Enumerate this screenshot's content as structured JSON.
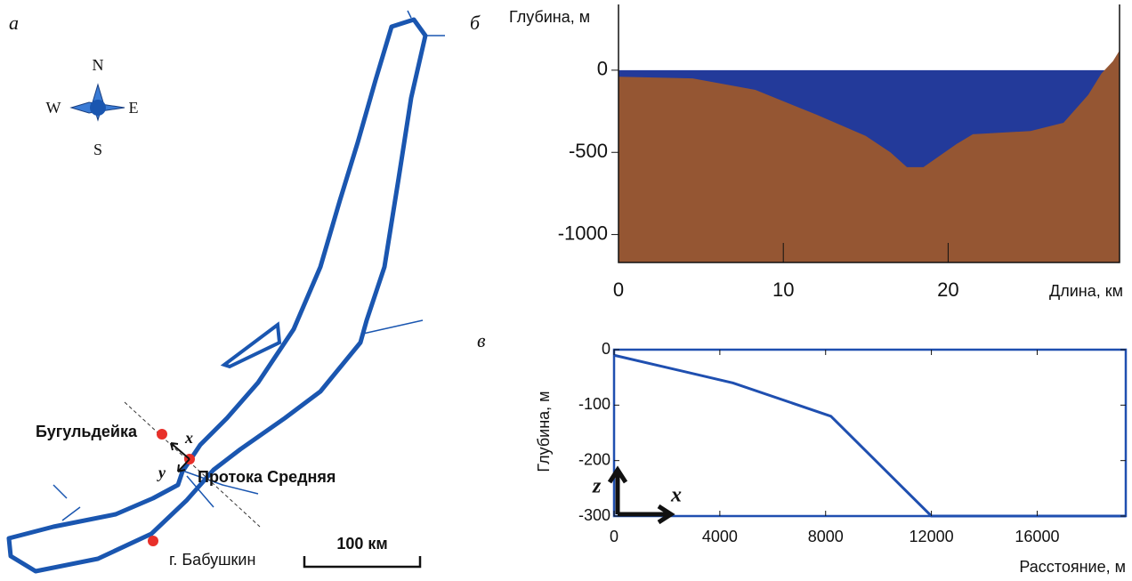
{
  "panel_labels": [
    "а",
    "б",
    "в"
  ],
  "map": {
    "compass": {
      "north": "N",
      "south": "S",
      "west": "W",
      "east": "E"
    },
    "places": [
      "Бугульдейка",
      "Протока Средняя",
      "г. Бабушкин"
    ],
    "axes": [
      "x",
      "y"
    ],
    "scale_bar": "100 км"
  },
  "chart_data": [
    {
      "type": "area",
      "xlabel": "Длина, км",
      "ylabel": "Глубина, м",
      "x": [
        0,
        4.5,
        8.3,
        12,
        15,
        16.5,
        17.5,
        18.5,
        20.5,
        21.5,
        25,
        27,
        28.5,
        29.3,
        30,
        30.4
      ],
      "series": [
        {
          "color": "#955633",
          "values": [
            -40,
            -50,
            -120,
            -270,
            -400,
            -500,
            -590,
            -590,
            -450,
            -390,
            -370,
            -320,
            -150,
            -20,
            55,
            120
          ]
        }
      ],
      "water_color": "#233a9a",
      "xlim": [
        0,
        30.4
      ],
      "ylim": [
        -1170,
        400
      ],
      "xticks": [
        0,
        10,
        20
      ],
      "yticks": [
        0,
        -500,
        -1000
      ]
    },
    {
      "type": "line",
      "xlabel": "Расстояние, м",
      "ylabel": "Глубина, м",
      "axis_arrows": [
        "z",
        "x"
      ],
      "x": [
        0,
        4500,
        8200,
        12000,
        19350
      ],
      "series": [
        {
          "color": "#1f4fb0",
          "values": [
            -10,
            -60,
            -120,
            -300,
            -300
          ]
        }
      ],
      "xlim": [
        0,
        19350
      ],
      "ylim": [
        -300,
        0
      ],
      "xticks": [
        0,
        4000,
        8000,
        12000,
        16000
      ],
      "yticks": [
        0,
        -100,
        -200,
        -300
      ]
    }
  ]
}
